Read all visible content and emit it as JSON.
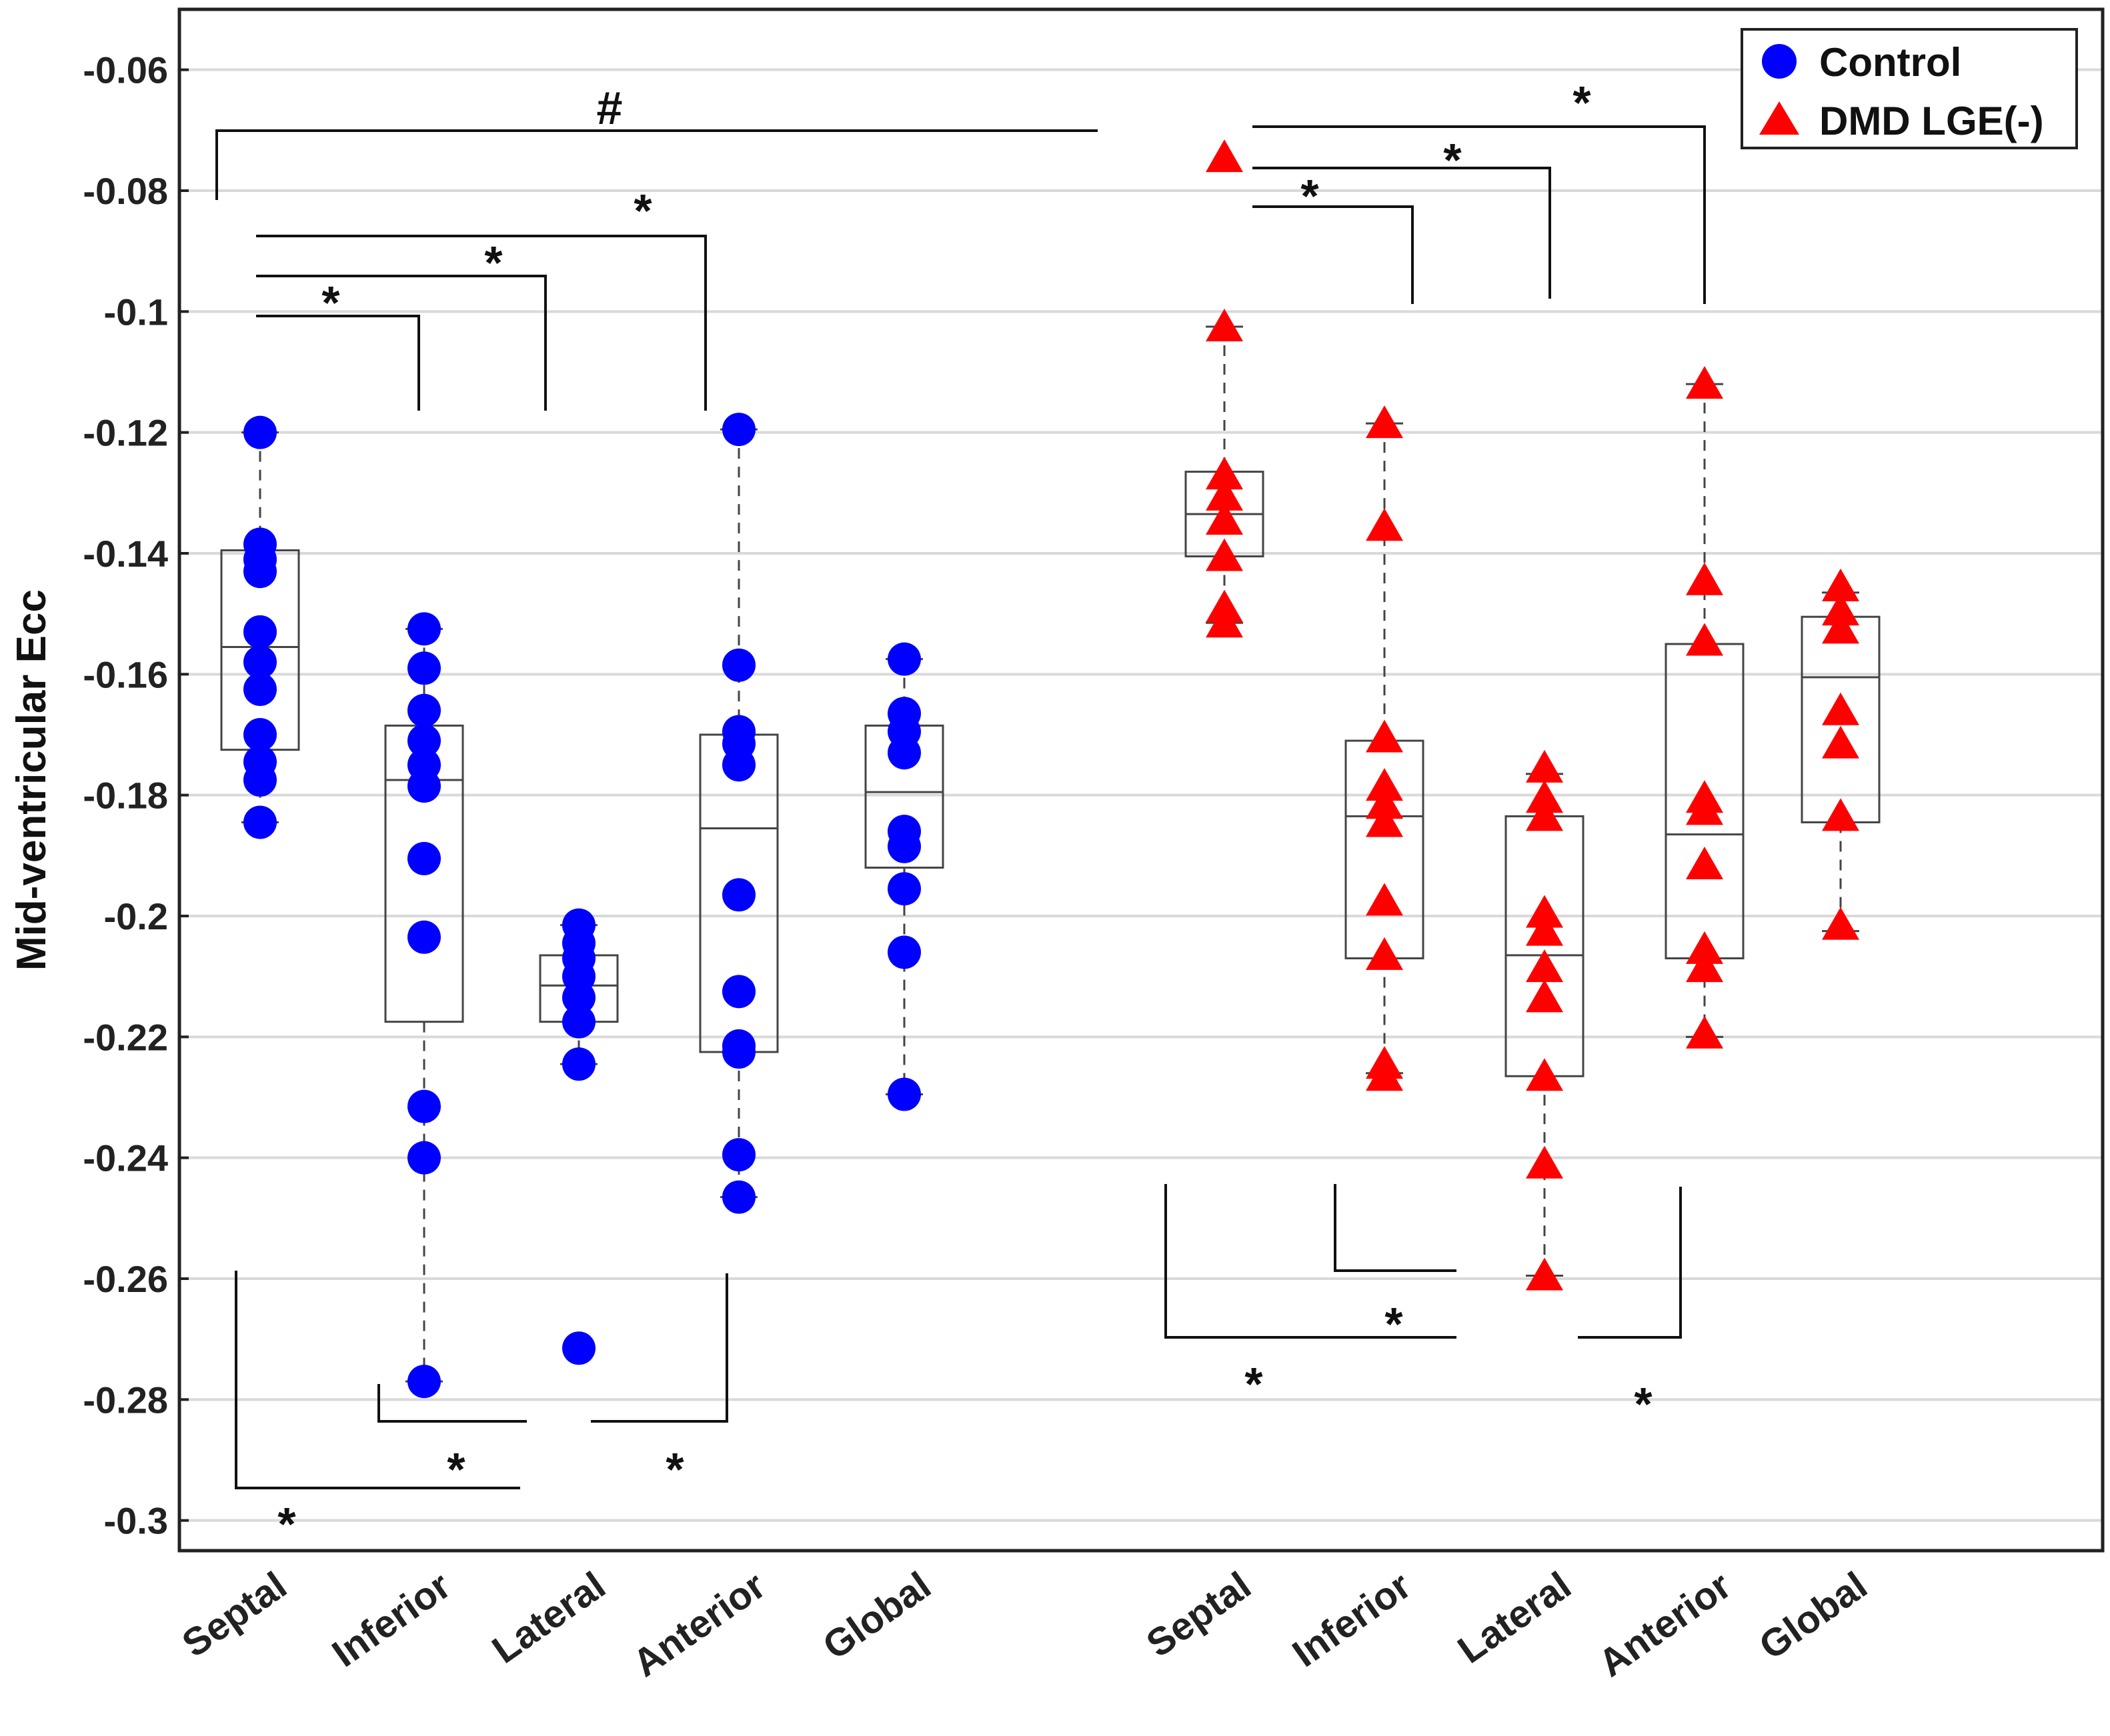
{
  "chart_data": {
    "type": "box-scatter",
    "ylabel": "Mid-ventricular Ecc",
    "ylim": [
      -0.305,
      -0.05
    ],
    "yticks": [
      -0.06,
      -0.08,
      -0.1,
      -0.12,
      -0.14,
      -0.16,
      -0.18,
      -0.2,
      -0.22,
      -0.24,
      -0.26,
      -0.28,
      -0.3
    ],
    "ytick_labels": [
      "-0.06",
      "-0.08",
      "-0.1",
      "-0.12",
      "-0.14",
      "-0.16",
      "-0.18",
      "-0.2",
      "-0.22",
      "-0.24",
      "-0.26",
      "-0.28",
      "-0.3"
    ],
    "grid": true,
    "legend": {
      "position": "top-right",
      "entries": [
        {
          "label": "Control",
          "marker": "circle",
          "color": "#0000ff"
        },
        {
          "label": "DMD LGE(-)",
          "marker": "triangle",
          "color": "#ff0000"
        }
      ]
    },
    "groups": [
      {
        "name": "Control",
        "color": "#0000ff",
        "marker": "circle",
        "categories": [
          {
            "label": "Septal",
            "box": {
              "q1": -0.1725,
              "median": -0.1555,
              "q3": -0.1395,
              "whisker_low": -0.1845,
              "whisker_high": -0.12
            },
            "points": [
              -0.12,
              -0.1385,
              -0.141,
              -0.143,
              -0.153,
              -0.158,
              -0.1625,
              -0.17,
              -0.1745,
              -0.1775,
              -0.1845
            ]
          },
          {
            "label": "Inferior",
            "box": {
              "q1": -0.2175,
              "median": -0.1775,
              "q3": -0.1685,
              "whisker_low": -0.277,
              "whisker_high": -0.1525
            },
            "points": [
              -0.1525,
              -0.159,
              -0.166,
              -0.171,
              -0.175,
              -0.1785,
              -0.1905,
              -0.2035,
              -0.2315,
              -0.24,
              -0.277
            ]
          },
          {
            "label": "Lateral",
            "box": {
              "q1": -0.2175,
              "median": -0.2115,
              "q3": -0.2065,
              "whisker_low": -0.2245,
              "whisker_high": -0.2015
            },
            "points": [
              -0.2015,
              -0.2045,
              -0.207,
              -0.21,
              -0.2135,
              -0.2175,
              -0.2245,
              -0.2715
            ]
          },
          {
            "label": "Anterior",
            "box": {
              "q1": -0.2225,
              "median": -0.1855,
              "q3": -0.17,
              "whisker_low": -0.2465,
              "whisker_high": -0.1195
            },
            "points": [
              -0.1195,
              -0.1585,
              -0.1695,
              -0.1715,
              -0.175,
              -0.1965,
              -0.2125,
              -0.2215,
              -0.2225,
              -0.2395,
              -0.2465
            ]
          },
          {
            "label": "Global",
            "box": {
              "q1": -0.192,
              "median": -0.1795,
              "q3": -0.1685,
              "whisker_low": -0.2295,
              "whisker_high": -0.1575
            },
            "points": [
              -0.1575,
              -0.1665,
              -0.1695,
              -0.173,
              -0.186,
              -0.1885,
              -0.1955,
              -0.206,
              -0.2295
            ]
          }
        ]
      },
      {
        "name": "DMD LGE(-)",
        "color": "#ff0000",
        "marker": "triangle",
        "categories": [
          {
            "label": "Septal",
            "box": {
              "q1": -0.1405,
              "median": -0.1335,
              "q3": -0.1265,
              "whisker_low": -0.1515,
              "whisker_high": -0.1025
            },
            "points": [
              -0.0745,
              -0.1025,
              -0.127,
              -0.1305,
              -0.1345,
              -0.1405,
              -0.149,
              -0.1515
            ]
          },
          {
            "label": "Inferior",
            "box": {
              "q1": -0.207,
              "median": -0.1835,
              "q3": -0.171,
              "whisker_low": -0.226,
              "whisker_high": -0.1185
            },
            "points": [
              -0.1185,
              -0.1355,
              -0.1705,
              -0.1785,
              -0.1815,
              -0.1845,
              -0.1975,
              -0.2065,
              -0.2245,
              -0.2265
            ]
          },
          {
            "label": "Lateral",
            "box": {
              "q1": -0.2265,
              "median": -0.2065,
              "q3": -0.1835,
              "whisker_low": -0.2595,
              "whisker_high": -0.1765
            },
            "points": [
              -0.1755,
              -0.1805,
              -0.1835,
              -0.1995,
              -0.2025,
              -0.2085,
              -0.2135,
              -0.2265,
              -0.241,
              -0.2595
            ]
          },
          {
            "label": "Anterior",
            "box": {
              "q1": -0.207,
              "median": -0.1865,
              "q3": -0.155,
              "whisker_low": -0.22,
              "whisker_high": -0.112
            },
            "points": [
              -0.112,
              -0.1445,
              -0.1545,
              -0.1805,
              -0.1825,
              -0.1915,
              -0.2055,
              -0.2085,
              -0.2195
            ]
          },
          {
            "label": "Global",
            "box": {
              "q1": -0.1845,
              "median": -0.1605,
              "q3": -0.1505,
              "whisker_low": -0.2025,
              "whisker_high": -0.1465
            },
            "points": [
              -0.1455,
              -0.1495,
              -0.1525,
              -0.166,
              -0.1715,
              -0.1835,
              -0.2015
            ]
          }
        ]
      }
    ],
    "annotations": [
      {
        "symbol": "#",
        "between": [
          "Control Septal",
          "DMD LGE(-) Septal"
        ]
      },
      {
        "symbol": "*",
        "between": [
          "Control Septal",
          "Control Inferior"
        ]
      },
      {
        "symbol": "*",
        "between": [
          "Control Septal",
          "Control Lateral"
        ]
      },
      {
        "symbol": "*",
        "between": [
          "Control Septal",
          "Control Anterior"
        ]
      },
      {
        "symbol": "*",
        "between": [
          "Control Septal",
          "Control Lateral"
        ],
        "placement": "below"
      },
      {
        "symbol": "*",
        "between": [
          "Control Inferior",
          "Control Lateral"
        ],
        "placement": "below"
      },
      {
        "symbol": "*",
        "between": [
          "Control Lateral",
          "Control Anterior"
        ],
        "placement": "below"
      },
      {
        "symbol": "*",
        "between": [
          "DMD LGE(-) Septal",
          "DMD LGE(-) Inferior"
        ]
      },
      {
        "symbol": "*",
        "between": [
          "DMD LGE(-) Septal",
          "DMD LGE(-) Lateral"
        ]
      },
      {
        "symbol": "*",
        "between": [
          "DMD LGE(-) Septal",
          "DMD LGE(-) Anterior"
        ]
      },
      {
        "symbol": "*",
        "between": [
          "DMD LGE(-) Septal",
          "DMD LGE(-) Lateral"
        ],
        "placement": "below"
      },
      {
        "symbol": "*",
        "between": [
          "DMD LGE(-) Inferior",
          "DMD LGE(-) Lateral"
        ],
        "placement": "below"
      },
      {
        "symbol": "*",
        "between": [
          "DMD LGE(-) Lateral",
          "DMD LGE(-) Anterior"
        ],
        "placement": "below"
      }
    ]
  }
}
